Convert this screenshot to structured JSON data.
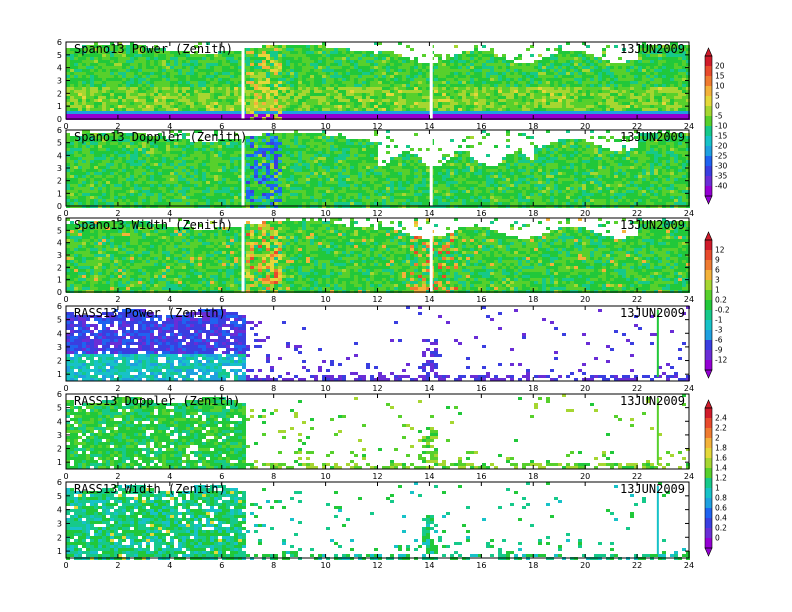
{
  "chart_data": [
    {
      "type": "heatmap",
      "title": "Spano13 Power (Zenith)",
      "date": "13JUN2009",
      "x_ticks": [
        "0",
        "2",
        "4",
        "6",
        "8",
        "10",
        "12",
        "14",
        "16",
        "18",
        "20",
        "22",
        "24"
      ],
      "y_ticks": [
        "0",
        "1",
        "2",
        "3",
        "4",
        "5",
        "6"
      ],
      "xlim": [
        0,
        24
      ],
      "ylim": [
        0,
        6
      ],
      "colorbar_group": "cb1",
      "note": "values estimated from colors (dB)"
    },
    {
      "type": "heatmap",
      "title": "Spano13 Doppler (Zenith)",
      "date": "13JUN2009",
      "x_ticks": [
        "0",
        "2",
        "4",
        "6",
        "8",
        "10",
        "12",
        "14",
        "16",
        "18",
        "20",
        "22",
        "24"
      ],
      "y_ticks": [
        "0",
        "1",
        "2",
        "3",
        "4",
        "5",
        "6"
      ],
      "xlim": [
        0,
        24
      ],
      "ylim": [
        0,
        6
      ],
      "colorbar_group": "cb1"
    },
    {
      "type": "heatmap",
      "title": "Spano13 Width (Zenith)",
      "date": "13JUN2009",
      "x_ticks": [
        "0",
        "2",
        "4",
        "6",
        "8",
        "10",
        "12",
        "14",
        "16",
        "18",
        "20",
        "22",
        "24"
      ],
      "y_ticks": [
        "0",
        "1",
        "2",
        "3",
        "4",
        "5",
        "6"
      ],
      "xlim": [
        0,
        24
      ],
      "ylim": [
        0,
        6
      ],
      "colorbar_group": "cb2"
    },
    {
      "type": "heatmap",
      "title": "RASS13 Power (Zenith)",
      "date": "13JUN2009",
      "x_ticks": [
        "0",
        "2",
        "4",
        "6",
        "8",
        "10",
        "12",
        "14",
        "16",
        "18",
        "20",
        "22",
        "24"
      ],
      "y_ticks": [
        "1",
        "2",
        "3",
        "4",
        "5",
        "6"
      ],
      "xlim": [
        0,
        24
      ],
      "ylim": [
        0.5,
        6
      ],
      "colorbar_group": "cb2"
    },
    {
      "type": "heatmap",
      "title": "RASS13 Doppler (Zenith)",
      "date": "13JUN2009",
      "x_ticks": [
        "0",
        "2",
        "4",
        "6",
        "8",
        "10",
        "12",
        "14",
        "16",
        "18",
        "20",
        "22",
        "24"
      ],
      "y_ticks": [
        "1",
        "2",
        "3",
        "4",
        "5",
        "6"
      ],
      "xlim": [
        0,
        24
      ],
      "ylim": [
        0.5,
        6
      ],
      "colorbar_group": "cb3"
    },
    {
      "type": "heatmap",
      "title": "RASS13 Width (Zenith)",
      "date": "13JUN2009",
      "x_ticks": [
        "0",
        "2",
        "4",
        "6",
        "8",
        "10",
        "12",
        "14",
        "16",
        "18",
        "20",
        "22",
        "24"
      ],
      "y_ticks": [
        "1",
        "2",
        "3",
        "4",
        "5",
        "6"
      ],
      "xlim": [
        0,
        24
      ],
      "ylim": [
        0.5,
        6
      ],
      "colorbar_group": "cb3"
    }
  ],
  "colorbars": [
    {
      "id": "cb1",
      "labels": [
        "20",
        "15",
        "10",
        "5",
        "0",
        "-5",
        "-10",
        "-15",
        "-20",
        "-25",
        "-30",
        "-35",
        "-40"
      ]
    },
    {
      "id": "cb2",
      "labels": [
        "12",
        "9",
        "6",
        "3",
        "1",
        "0.2",
        "-0.2",
        "-1",
        "-3",
        "-6",
        "-9",
        "-12"
      ]
    },
    {
      "id": "cb3",
      "labels": [
        "2.4",
        "2.2",
        "2",
        "1.8",
        "1.6",
        "1.4",
        "1.2",
        "1",
        "0.8",
        "0.6",
        "0.4",
        "0.2",
        "0"
      ]
    }
  ],
  "palette": [
    "#9400d3",
    "#6a2dd6",
    "#3a3ee0",
    "#1f63f0",
    "#1fa0e0",
    "#17c2c8",
    "#16c98a",
    "#21c83a",
    "#57d02c",
    "#a6d631",
    "#e4d83a",
    "#f3b23a",
    "#ef7b30",
    "#e84a2c",
    "#d01b2a"
  ]
}
